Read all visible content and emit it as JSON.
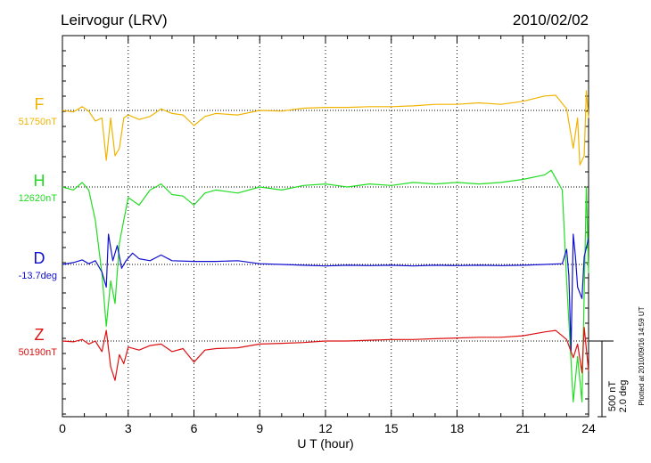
{
  "chart_data": {
    "type": "line",
    "title": "Leirvogur (LRV)",
    "date": "2010/02/02",
    "xlabel": "U T (hour)",
    "xlim": [
      0,
      24
    ],
    "xticks": [
      0,
      3,
      6,
      9,
      12,
      15,
      18,
      21,
      24
    ],
    "grid": true,
    "scale_label_nt": "500 nT",
    "scale_label_deg": "2.0 deg",
    "plotted_note": "Plotted at 2010/09/16 14:59 UT",
    "series": [
      {
        "name": "F",
        "baseline_label": "51750nT",
        "color": "#f0b400",
        "baseline_nt": 51750,
        "points": [
          [
            0,
            51750
          ],
          [
            0.5,
            51740
          ],
          [
            0.9,
            51775
          ],
          [
            1.2,
            51745
          ],
          [
            1.5,
            51680
          ],
          [
            1.8,
            51700
          ],
          [
            2.0,
            51420
          ],
          [
            2.2,
            51700
          ],
          [
            2.4,
            51450
          ],
          [
            2.6,
            51500
          ],
          [
            2.8,
            51700
          ],
          [
            3.0,
            51720
          ],
          [
            3.5,
            51690
          ],
          [
            4.0,
            51710
          ],
          [
            4.5,
            51760
          ],
          [
            5.0,
            51730
          ],
          [
            5.5,
            51720
          ],
          [
            6.0,
            51650
          ],
          [
            6.5,
            51710
          ],
          [
            7.0,
            51730
          ],
          [
            8.0,
            51720
          ],
          [
            9.0,
            51750
          ],
          [
            10.0,
            51745
          ],
          [
            11.0,
            51765
          ],
          [
            12.0,
            51770
          ],
          [
            13.0,
            51770
          ],
          [
            14.0,
            51775
          ],
          [
            15.0,
            51775
          ],
          [
            16.0,
            51780
          ],
          [
            17.0,
            51790
          ],
          [
            18.0,
            51790
          ],
          [
            19.0,
            51800
          ],
          [
            20.0,
            51790
          ],
          [
            21.0,
            51810
          ],
          [
            22.0,
            51845
          ],
          [
            22.5,
            51850
          ],
          [
            23.0,
            51760
          ],
          [
            23.3,
            51500
          ],
          [
            23.5,
            51700
          ],
          [
            23.6,
            51390
          ],
          [
            23.8,
            51450
          ],
          [
            23.9,
            51880
          ],
          [
            24.0,
            51700
          ]
        ]
      },
      {
        "name": "H",
        "baseline_label": "12620nT",
        "color": "#22dd22",
        "baseline_nt": 12620,
        "points": [
          [
            0,
            12620
          ],
          [
            0.5,
            12600
          ],
          [
            0.9,
            12650
          ],
          [
            1.2,
            12600
          ],
          [
            1.5,
            12400
          ],
          [
            1.8,
            12050
          ],
          [
            2.0,
            11700
          ],
          [
            2.2,
            12000
          ],
          [
            2.4,
            11850
          ],
          [
            2.6,
            12250
          ],
          [
            2.8,
            12400
          ],
          [
            3.0,
            12550
          ],
          [
            3.5,
            12500
          ],
          [
            4.0,
            12600
          ],
          [
            4.5,
            12640
          ],
          [
            5.0,
            12570
          ],
          [
            5.5,
            12560
          ],
          [
            6.0,
            12500
          ],
          [
            6.5,
            12580
          ],
          [
            7.0,
            12600
          ],
          [
            8.0,
            12580
          ],
          [
            9.0,
            12620
          ],
          [
            10.0,
            12600
          ],
          [
            11.0,
            12630
          ],
          [
            12.0,
            12640
          ],
          [
            13.0,
            12620
          ],
          [
            14.0,
            12640
          ],
          [
            15.0,
            12630
          ],
          [
            16.0,
            12650
          ],
          [
            17.0,
            12640
          ],
          [
            18.0,
            12650
          ],
          [
            19.0,
            12640
          ],
          [
            20.0,
            12650
          ],
          [
            21.0,
            12670
          ],
          [
            22.0,
            12700
          ],
          [
            22.3,
            12730
          ],
          [
            22.8,
            12600
          ],
          [
            23.0,
            12000
          ],
          [
            23.3,
            11200
          ],
          [
            23.5,
            11500
          ],
          [
            23.7,
            11200
          ],
          [
            23.9,
            12620
          ],
          [
            24.0,
            12050
          ]
        ]
      },
      {
        "name": "D",
        "baseline_label": "-13.7deg",
        "color": "#1010d0",
        "baseline_deg": -13.7,
        "points": [
          [
            0,
            -13.7
          ],
          [
            0.5,
            -13.65
          ],
          [
            0.9,
            -13.58
          ],
          [
            1.2,
            -13.68
          ],
          [
            1.5,
            -13.6
          ],
          [
            1.8,
            -13.9
          ],
          [
            2.0,
            -14.3
          ],
          [
            2.1,
            -12.9
          ],
          [
            2.3,
            -13.6
          ],
          [
            2.5,
            -13.2
          ],
          [
            2.7,
            -13.8
          ],
          [
            2.9,
            -13.6
          ],
          [
            3.2,
            -13.4
          ],
          [
            3.5,
            -13.55
          ],
          [
            4.0,
            -13.6
          ],
          [
            4.5,
            -13.45
          ],
          [
            5.0,
            -13.6
          ],
          [
            6.0,
            -13.62
          ],
          [
            7.0,
            -13.62
          ],
          [
            8.0,
            -13.6
          ],
          [
            9.0,
            -13.68
          ],
          [
            10.0,
            -13.7
          ],
          [
            11.0,
            -13.72
          ],
          [
            12.0,
            -13.74
          ],
          [
            13.0,
            -13.72
          ],
          [
            14.0,
            -13.73
          ],
          [
            15.0,
            -13.72
          ],
          [
            16.0,
            -13.74
          ],
          [
            17.0,
            -13.72
          ],
          [
            18.0,
            -13.73
          ],
          [
            19.0,
            -13.72
          ],
          [
            20.0,
            -13.73
          ],
          [
            21.0,
            -13.72
          ],
          [
            22.0,
            -13.7
          ],
          [
            22.8,
            -13.68
          ],
          [
            23.0,
            -13.3
          ],
          [
            23.1,
            -14.0
          ],
          [
            23.2,
            -16.0
          ],
          [
            23.3,
            -12.9
          ],
          [
            23.4,
            -13.5
          ],
          [
            23.5,
            -14.3
          ],
          [
            23.7,
            -14.6
          ],
          [
            23.8,
            -13.5
          ],
          [
            24.0,
            -13.0
          ]
        ]
      },
      {
        "name": "Z",
        "baseline_label": "50190nT",
        "color": "#dd1111",
        "baseline_nt": 50190,
        "points": [
          [
            0,
            50190
          ],
          [
            0.5,
            50185
          ],
          [
            0.9,
            50200
          ],
          [
            1.2,
            50170
          ],
          [
            1.5,
            50190
          ],
          [
            1.8,
            50120
          ],
          [
            2.0,
            50260
          ],
          [
            2.2,
            50020
          ],
          [
            2.4,
            49930
          ],
          [
            2.6,
            50100
          ],
          [
            2.8,
            50040
          ],
          [
            3.0,
            50150
          ],
          [
            3.5,
            50130
          ],
          [
            4.0,
            50160
          ],
          [
            4.5,
            50170
          ],
          [
            5.0,
            50120
          ],
          [
            5.5,
            50140
          ],
          [
            6.0,
            50050
          ],
          [
            6.5,
            50130
          ],
          [
            7.0,
            50140
          ],
          [
            8.0,
            50145
          ],
          [
            9.0,
            50170
          ],
          [
            10.0,
            50175
          ],
          [
            11.0,
            50180
          ],
          [
            12.0,
            50190
          ],
          [
            13.0,
            50190
          ],
          [
            14.0,
            50195
          ],
          [
            15.0,
            50200
          ],
          [
            16.0,
            50200
          ],
          [
            17.0,
            50205
          ],
          [
            18.0,
            50210
          ],
          [
            19.0,
            50215
          ],
          [
            20.0,
            50215
          ],
          [
            21.0,
            50225
          ],
          [
            22.0,
            50250
          ],
          [
            22.5,
            50260
          ],
          [
            23.0,
            50200
          ],
          [
            23.3,
            50080
          ],
          [
            23.5,
            50170
          ],
          [
            23.7,
            49980
          ],
          [
            23.8,
            50280
          ],
          [
            24.0,
            49990
          ]
        ]
      }
    ]
  }
}
